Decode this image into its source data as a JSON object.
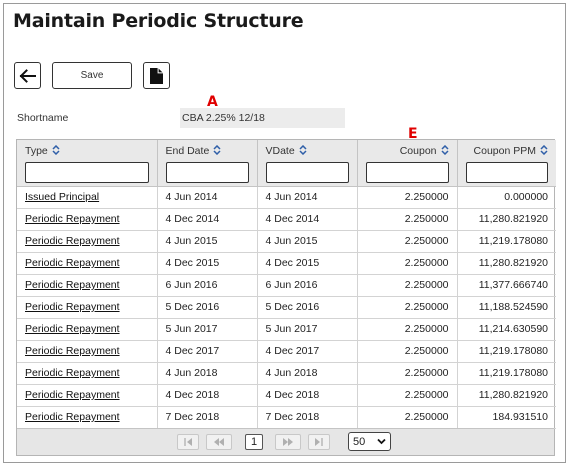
{
  "page": {
    "title": "Maintain Periodic Structure"
  },
  "toolbar": {
    "save_label": "Save"
  },
  "annotations": {
    "a": "A",
    "e": "E"
  },
  "shortname": {
    "label": "Shortname",
    "value": "CBA 2.25% 12/18"
  },
  "grid": {
    "columns": [
      {
        "label": "Type",
        "align": "left"
      },
      {
        "label": "End Date",
        "align": "left"
      },
      {
        "label": "VDate",
        "align": "left"
      },
      {
        "label": "Coupon",
        "align": "right"
      },
      {
        "label": "Coupon PPM",
        "align": "right"
      }
    ],
    "rows": [
      {
        "type": "Issued Principal",
        "end_date": "4 Jun 2014",
        "vdate": "4 Jun 2014",
        "coupon": "2.250000",
        "coupon_ppm": "0.000000"
      },
      {
        "type": "Periodic Repayment",
        "end_date": "4 Dec 2014",
        "vdate": "4 Dec 2014",
        "coupon": "2.250000",
        "coupon_ppm": "11,280.821920"
      },
      {
        "type": "Periodic Repayment",
        "end_date": "4 Jun 2015",
        "vdate": "4 Jun 2015",
        "coupon": "2.250000",
        "coupon_ppm": "11,219.178080"
      },
      {
        "type": "Periodic Repayment",
        "end_date": "4 Dec 2015",
        "vdate": "4 Dec 2015",
        "coupon": "2.250000",
        "coupon_ppm": "11,280.821920"
      },
      {
        "type": "Periodic Repayment",
        "end_date": "6 Jun 2016",
        "vdate": "6 Jun 2016",
        "coupon": "2.250000",
        "coupon_ppm": "11,377.666740"
      },
      {
        "type": "Periodic Repayment",
        "end_date": "5 Dec 2016",
        "vdate": "5 Dec 2016",
        "coupon": "2.250000",
        "coupon_ppm": "11,188.524590"
      },
      {
        "type": "Periodic Repayment",
        "end_date": "5 Jun 2017",
        "vdate": "5 Jun 2017",
        "coupon": "2.250000",
        "coupon_ppm": "11,214.630590"
      },
      {
        "type": "Periodic Repayment",
        "end_date": "4 Dec 2017",
        "vdate": "4 Dec 2017",
        "coupon": "2.250000",
        "coupon_ppm": "11,219.178080"
      },
      {
        "type": "Periodic Repayment",
        "end_date": "4 Jun 2018",
        "vdate": "4 Jun 2018",
        "coupon": "2.250000",
        "coupon_ppm": "11,219.178080"
      },
      {
        "type": "Periodic Repayment",
        "end_date": "4 Dec 2018",
        "vdate": "4 Dec 2018",
        "coupon": "2.250000",
        "coupon_ppm": "11,280.821920"
      },
      {
        "type": "Periodic Repayment",
        "end_date": "7 Dec 2018",
        "vdate": "7 Dec 2018",
        "coupon": "2.250000",
        "coupon_ppm": "184.931510"
      }
    ]
  },
  "pager": {
    "current_page": "1",
    "page_size": "50"
  },
  "colors": {
    "marker": "#e00000",
    "header_bg": "#e9e9e9",
    "pager_bg": "#e6e6e6"
  },
  "icons": {
    "back": "arrow-left-icon",
    "document": "document-icon",
    "sort": "sort-up-down-icon",
    "first": "first-page-icon",
    "prev": "prev-page-icon",
    "next": "next-page-icon",
    "last": "last-page-icon"
  }
}
